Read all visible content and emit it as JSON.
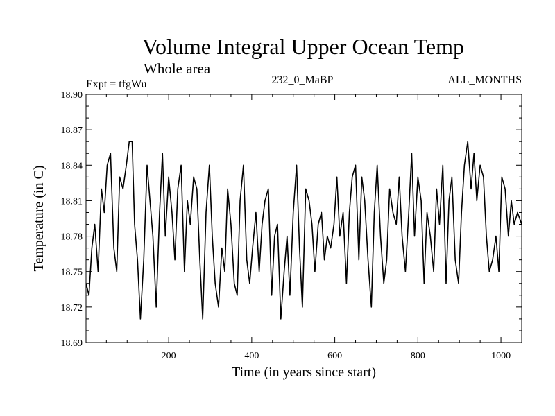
{
  "chart_data": {
    "type": "line",
    "title": "Volume Integral Upper Ocean Temp",
    "subtitle": "Whole area",
    "experiment": "Expt = tfgWu",
    "run": "232_0_MaBP",
    "season": "ALL_MONTHS",
    "xlabel": "Time (in years since start)",
    "ylabel": "Temperature (in C)",
    "xlim": [
      1,
      1050
    ],
    "ylim": [
      18.69,
      18.9
    ],
    "xticks": [
      200,
      400,
      600,
      800,
      1000
    ],
    "xtick_labels": [
      "200",
      "400",
      "600",
      "800",
      "1000"
    ],
    "yticks": [
      18.69,
      18.72,
      18.75,
      18.78,
      18.81,
      18.84,
      18.87,
      18.9
    ],
    "ytick_labels": [
      "18.69",
      "18.72",
      "18.75",
      "18.78",
      "18.81",
      "18.84",
      "18.87",
      "18.90"
    ],
    "series": [
      {
        "name": "Upper Ocean Temp",
        "color": "#000000",
        "x": [
          1,
          8,
          15,
          22,
          30,
          38,
          45,
          52,
          60,
          68,
          75,
          82,
          90,
          98,
          105,
          112,
          118,
          125,
          132,
          140,
          148,
          155,
          162,
          170,
          178,
          185,
          192,
          200,
          208,
          215,
          222,
          230,
          238,
          245,
          252,
          260,
          268,
          275,
          282,
          290,
          298,
          305,
          312,
          320,
          328,
          335,
          342,
          350,
          358,
          365,
          372,
          380,
          388,
          395,
          402,
          410,
          418,
          425,
          432,
          440,
          448,
          455,
          462,
          470,
          478,
          485,
          492,
          500,
          508,
          515,
          522,
          530,
          538,
          545,
          552,
          560,
          568,
          575,
          582,
          590,
          598,
          605,
          612,
          620,
          628,
          635,
          642,
          650,
          658,
          665,
          672,
          680,
          688,
          695,
          702,
          710,
          718,
          725,
          732,
          740,
          748,
          755,
          762,
          770,
          778,
          785,
          792,
          800,
          808,
          815,
          822,
          830,
          838,
          845,
          852,
          860,
          868,
          875,
          882,
          890,
          898,
          905,
          912,
          920,
          928,
          935,
          942,
          950,
          958,
          965,
          972,
          980,
          988,
          995,
          1002,
          1010,
          1018,
          1025,
          1032,
          1040,
          1050
        ],
        "values": [
          18.74,
          18.73,
          18.77,
          18.79,
          18.75,
          18.82,
          18.8,
          18.84,
          18.85,
          18.77,
          18.75,
          18.83,
          18.82,
          18.84,
          18.86,
          18.86,
          18.79,
          18.76,
          18.71,
          18.76,
          18.84,
          18.81,
          18.78,
          18.72,
          18.8,
          18.85,
          18.78,
          18.83,
          18.8,
          18.76,
          18.82,
          18.84,
          18.75,
          18.81,
          18.79,
          18.83,
          18.82,
          18.76,
          18.71,
          18.8,
          18.84,
          18.78,
          18.74,
          18.72,
          18.77,
          18.75,
          18.82,
          18.79,
          18.74,
          18.73,
          18.81,
          18.84,
          18.76,
          18.74,
          18.77,
          18.8,
          18.75,
          18.79,
          18.81,
          18.82,
          18.73,
          18.78,
          18.79,
          18.71,
          18.75,
          18.78,
          18.73,
          18.8,
          18.84,
          18.77,
          18.72,
          18.82,
          18.81,
          18.79,
          18.75,
          18.79,
          18.8,
          18.76,
          18.78,
          18.77,
          18.79,
          18.83,
          18.78,
          18.8,
          18.74,
          18.8,
          18.83,
          18.84,
          18.76,
          18.83,
          18.81,
          18.76,
          18.72,
          18.8,
          18.84,
          18.78,
          18.74,
          18.76,
          18.82,
          18.8,
          18.79,
          18.83,
          18.78,
          18.75,
          18.8,
          18.85,
          18.78,
          18.83,
          18.81,
          18.74,
          18.8,
          18.78,
          18.75,
          18.82,
          18.79,
          18.84,
          18.74,
          18.81,
          18.83,
          18.76,
          18.74,
          18.8,
          18.84,
          18.86,
          18.82,
          18.85,
          18.81,
          18.84,
          18.83,
          18.78,
          18.75,
          18.76,
          18.78,
          18.75,
          18.83,
          18.82,
          18.78,
          18.81,
          18.79,
          18.8,
          18.79
        ]
      }
    ]
  }
}
